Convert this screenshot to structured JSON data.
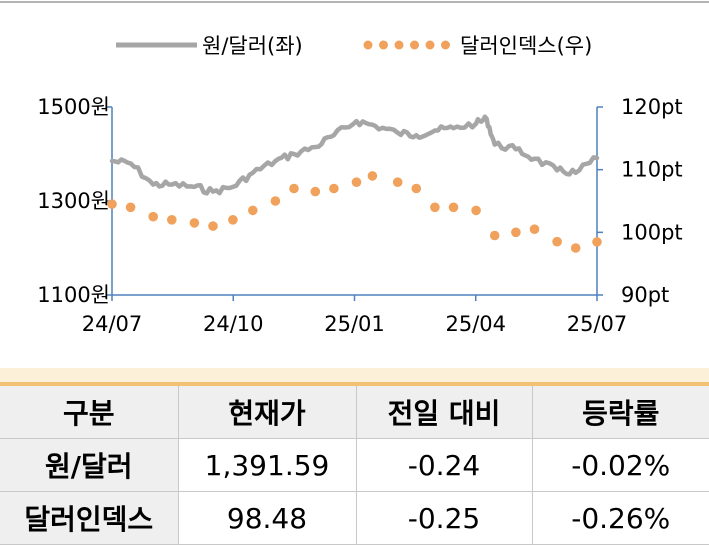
{
  "chart_data": {
    "type": "line",
    "legend": {
      "placement": "top",
      "entries": [
        "원/달러(좌)",
        "달러인덱스(우)"
      ]
    },
    "x_ticks": [
      "24/07",
      "24/10",
      "25/01",
      "25/04",
      "25/07"
    ],
    "x_range": [
      "2024-07-01",
      "2025-07-01"
    ],
    "y_left": {
      "range": [
        1100,
        1500
      ],
      "ticks": [
        "1500원",
        "1300원",
        "1100원"
      ]
    },
    "y_right": {
      "range": [
        90,
        120
      ],
      "ticks": [
        "120pt",
        "110pt",
        "100pt",
        "90pt"
      ]
    },
    "grid": false,
    "series": [
      {
        "name": "원/달러(좌)",
        "axis": "left",
        "style": "solid-line",
        "color": "#a6a6a6",
        "x": [
          "2024-07-01",
          "2024-07-15",
          "2024-08-01",
          "2024-08-15",
          "2024-09-01",
          "2024-09-15",
          "2024-09-30",
          "2024-10-15",
          "2024-11-01",
          "2024-11-15",
          "2024-12-01",
          "2024-12-15",
          "2025-01-01",
          "2025-01-15",
          "2025-02-01",
          "2025-02-15",
          "2025-03-01",
          "2025-03-15",
          "2025-04-01",
          "2025-04-09",
          "2025-04-15",
          "2025-05-01",
          "2025-05-15",
          "2025-06-01",
          "2025-06-15",
          "2025-07-01"
        ],
        "values": [
          1385,
          1380,
          1335,
          1335,
          1330,
          1320,
          1330,
          1360,
          1385,
          1400,
          1415,
          1440,
          1470,
          1460,
          1445,
          1440,
          1450,
          1455,
          1465,
          1475,
          1420,
          1410,
          1390,
          1365,
          1360,
          1391.59
        ]
      },
      {
        "name": "달러인덱스(우)",
        "axis": "right",
        "style": "dotted",
        "color": "#f0a15b",
        "x": [
          "2024-07-01",
          "2024-07-15",
          "2024-08-01",
          "2024-08-15",
          "2024-09-01",
          "2024-09-15",
          "2024-09-30",
          "2024-10-15",
          "2024-11-01",
          "2024-11-15",
          "2024-12-01",
          "2024-12-15",
          "2025-01-01",
          "2025-01-13",
          "2025-02-01",
          "2025-02-15",
          "2025-03-01",
          "2025-03-15",
          "2025-04-01",
          "2025-04-15",
          "2025-05-01",
          "2025-05-15",
          "2025-06-01",
          "2025-06-15",
          "2025-07-01"
        ],
        "values": [
          104.5,
          104,
          102.5,
          102,
          101.5,
          101,
          102,
          103.5,
          105,
          107,
          106.5,
          107,
          108,
          109,
          108,
          107,
          104,
          104,
          103.5,
          99.5,
          100,
          100.5,
          98.5,
          97.5,
          98.48
        ]
      }
    ]
  },
  "table": {
    "headers": [
      "구분",
      "현재가",
      "전일 대비",
      "등락률"
    ],
    "rows": [
      [
        "원/달러",
        "1,391.59",
        "-0.24",
        "-0.02%"
      ],
      [
        "달러인덱스",
        "98.48",
        "-0.25",
        "-0.26%"
      ]
    ]
  }
}
